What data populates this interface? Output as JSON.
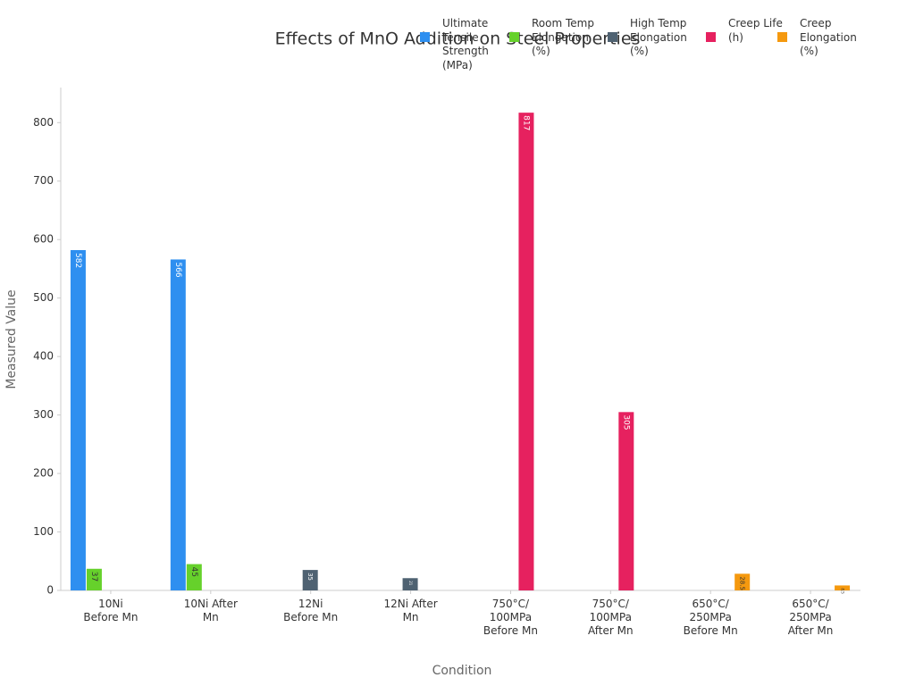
{
  "chart_data": {
    "type": "bar",
    "title": "Effects of MnO Addition on Steel Properties",
    "xlabel": "Condition",
    "ylabel": "Measured Value",
    "categories": [
      "10Ni Before Mn",
      "10Ni After Mn",
      "12Ni Before Mn",
      "12Ni After Mn",
      "750°C/ 100MPa Before Mn",
      "750°C/ 100MPa After Mn",
      "650°C/ 250MPa Before Mn",
      "650°C/ 250MPa After Mn"
    ],
    "series": [
      {
        "name": "Ultimate Tensile Strength (MPa)",
        "color": "#2e8ff0",
        "values": [
          582,
          566,
          null,
          null,
          null,
          null,
          null,
          null
        ]
      },
      {
        "name": "Room Temp Elongation (%)",
        "color": "#66d12b",
        "values": [
          37,
          45,
          null,
          null,
          null,
          null,
          null,
          null
        ]
      },
      {
        "name": "High Temp Elongation (%)",
        "color": "#4f6272",
        "values": [
          null,
          null,
          35,
          21,
          null,
          null,
          null,
          null
        ]
      },
      {
        "name": "Creep Life (h)",
        "color": "#e6215f",
        "values": [
          null,
          null,
          null,
          null,
          817,
          305,
          null,
          null
        ]
      },
      {
        "name": "Creep Elongation (%)",
        "color": "#f5990f",
        "values": [
          null,
          null,
          null,
          null,
          null,
          null,
          28.5,
          8.5
        ]
      }
    ],
    "ylim": [
      0,
      860
    ],
    "yticks": [
      0,
      100,
      200,
      300,
      400,
      500,
      600,
      700,
      800
    ],
    "grid": false
  }
}
